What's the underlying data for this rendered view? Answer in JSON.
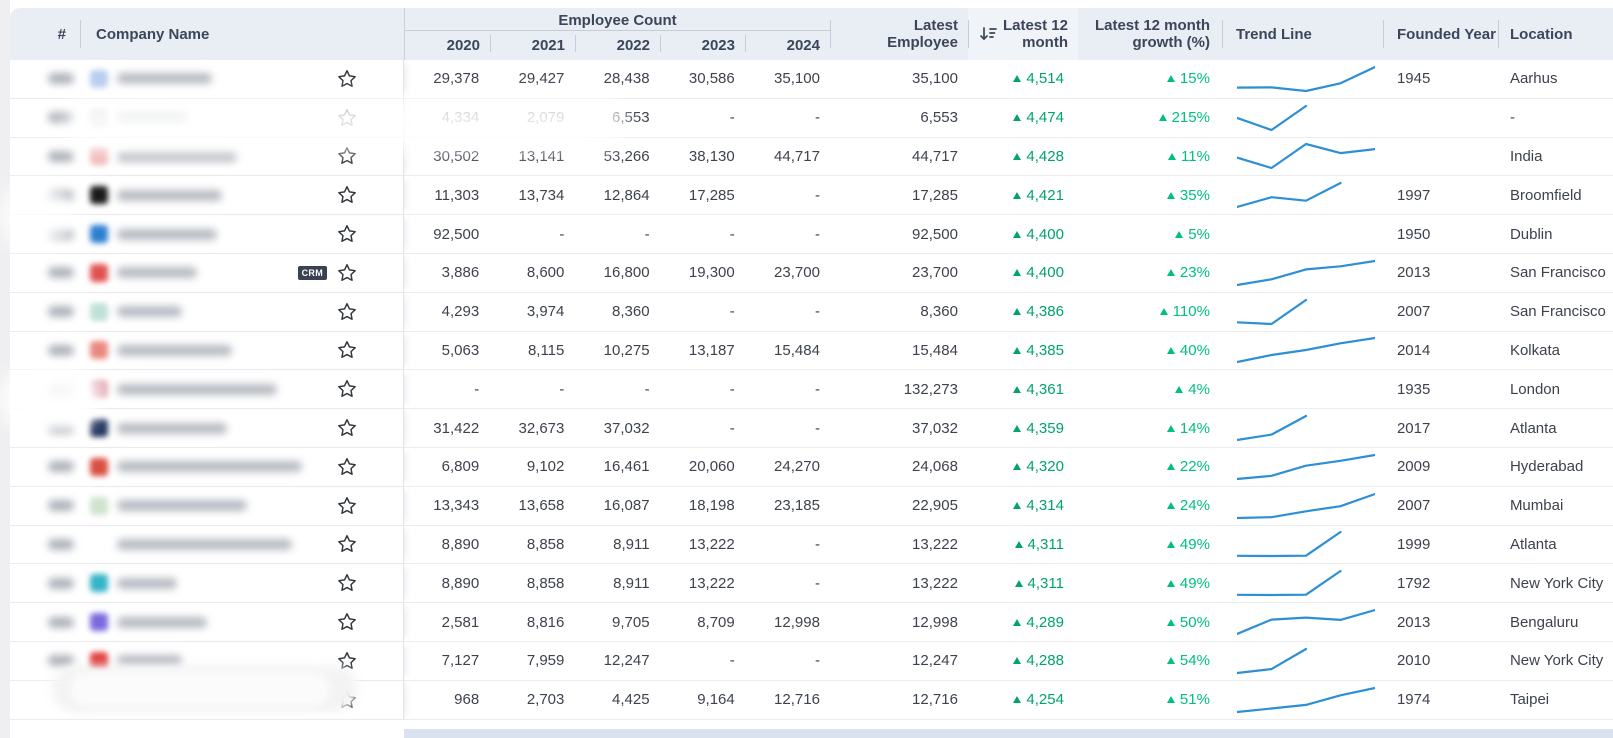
{
  "colors": {
    "header_bg": "#e9edf4",
    "sorted_header_bg": "#f0f3f8",
    "green_value": "#00a36c",
    "green_growth": "#00c07d",
    "sparkline_blue": "#2d8fd5"
  },
  "header": {
    "col_hash": "#",
    "col_company": "Company Name",
    "group_employee_count": "Employee Count",
    "years": [
      "2020",
      "2021",
      "2022",
      "2023",
      "2024"
    ],
    "col_latest_employee": "Latest Employee",
    "col_latest_12m": "Latest 12 month",
    "col_latest_12m_growth": "Latest 12 month growth (%)",
    "col_trend": "Trend Line",
    "col_founded": "Founded Year",
    "col_location": "Location",
    "sort_state": "descending on Latest 12 month"
  },
  "rows": [
    {
      "logo": "#b8cdf0",
      "name_w": 95,
      "badge": "",
      "counts": [
        "29,378",
        "29,427",
        "28,438",
        "30,586",
        "35,100"
      ],
      "latest": "35,100",
      "latest_12m": "4,514",
      "growth": "15%",
      "founded": "1945",
      "location": "Aarhus"
    },
    {
      "logo": "#c9ccd1",
      "name_w": 70,
      "badge": "",
      "counts": [
        "4,334",
        "2,079",
        "6,553",
        "-",
        "-"
      ],
      "latest": "6,553",
      "latest_12m": "4,474",
      "growth": "215%",
      "founded": "",
      "location": "-"
    },
    {
      "logo": "#f0b5b5",
      "name_w": 120,
      "badge": "",
      "counts": [
        "30,502",
        "13,141",
        "53,266",
        "38,130",
        "44,717"
      ],
      "latest": "44,717",
      "latest_12m": "4,428",
      "growth": "11%",
      "founded": "",
      "location": "India"
    },
    {
      "logo": "#1b1b1b",
      "name_w": 105,
      "badge": "",
      "counts": [
        "11,303",
        "13,734",
        "12,864",
        "17,285",
        "-"
      ],
      "latest": "17,285",
      "latest_12m": "4,421",
      "growth": "35%",
      "founded": "1997",
      "location": "Broomfield"
    },
    {
      "logo": "#2f7fd0",
      "name_w": 100,
      "badge": "",
      "counts": [
        "92,500",
        "-",
        "-",
        "-",
        "-"
      ],
      "latest": "92,500",
      "latest_12m": "4,400",
      "growth": "5%",
      "founded": "1950",
      "location": "Dublin"
    },
    {
      "logo": "#e05252",
      "name_w": 80,
      "badge": "CRM",
      "counts": [
        "3,886",
        "8,600",
        "16,800",
        "19,300",
        "23,700"
      ],
      "latest": "23,700",
      "latest_12m": "4,400",
      "growth": "23%",
      "founded": "2013",
      "location": "San Francisco"
    },
    {
      "logo": "#bfe0d8",
      "name_w": 65,
      "badge": "",
      "counts": [
        "4,293",
        "3,974",
        "8,360",
        "-",
        "-"
      ],
      "latest": "8,360",
      "latest_12m": "4,386",
      "growth": "110%",
      "founded": "2007",
      "location": "San Francisco"
    },
    {
      "logo": "#e8897f",
      "name_w": 115,
      "badge": "",
      "counts": [
        "5,063",
        "8,115",
        "10,275",
        "13,187",
        "15,484"
      ],
      "latest": "15,484",
      "latest_12m": "4,385",
      "growth": "40%",
      "founded": "2014",
      "location": "Kolkata"
    },
    {
      "logo": "#e0a9b4",
      "name_w": 160,
      "badge": "",
      "counts": [
        "-",
        "-",
        "-",
        "-",
        "-"
      ],
      "latest": "132,273",
      "latest_12m": "4,361",
      "growth": "4%",
      "founded": "1935",
      "location": "London"
    },
    {
      "logo": "#23355f",
      "name_w": 110,
      "badge": "",
      "counts": [
        "31,422",
        "32,673",
        "37,032",
        "-",
        "-"
      ],
      "latest": "37,032",
      "latest_12m": "4,359",
      "growth": "14%",
      "founded": "2017",
      "location": "Atlanta"
    },
    {
      "logo": "#d94f43",
      "name_w": 185,
      "badge": "",
      "counts": [
        "6,809",
        "9,102",
        "16,461",
        "20,060",
        "24,270"
      ],
      "latest": "24,068",
      "latest_12m": "4,320",
      "growth": "22%",
      "founded": "2009",
      "location": "Hyderabad"
    },
    {
      "logo": "#cfe3cd",
      "name_w": 130,
      "badge": "",
      "counts": [
        "13,343",
        "13,658",
        "16,087",
        "18,198",
        "23,185"
      ],
      "latest": "22,905",
      "latest_12m": "4,314",
      "growth": "24%",
      "founded": "2007",
      "location": "Mumbai"
    },
    {
      "logo": null,
      "name_w": 175,
      "badge": "",
      "counts": [
        "8,890",
        "8,858",
        "8,911",
        "13,222",
        "-"
      ],
      "latest": "13,222",
      "latest_12m": "4,311",
      "growth": "49%",
      "founded": "1999",
      "location": "Atlanta"
    },
    {
      "logo": "#35b3c7",
      "name_w": 60,
      "badge": "",
      "counts": [
        "8,890",
        "8,858",
        "8,911",
        "13,222",
        "-"
      ],
      "latest": "13,222",
      "latest_12m": "4,311",
      "growth": "49%",
      "founded": "1792",
      "location": "New York City"
    },
    {
      "logo": "#7a6bde",
      "name_w": 90,
      "badge": "",
      "counts": [
        "2,581",
        "8,816",
        "9,705",
        "8,709",
        "12,998"
      ],
      "latest": "12,998",
      "latest_12m": "4,289",
      "growth": "50%",
      "founded": "2013",
      "location": "Bengaluru"
    },
    {
      "logo": "#e0413e",
      "name_w": 65,
      "badge": "",
      "counts": [
        "7,127",
        "7,959",
        "12,247",
        "-",
        "-"
      ],
      "latest": "12,247",
      "latest_12m": "4,288",
      "growth": "54%",
      "founded": "2010",
      "location": "New York City"
    },
    {
      "logo": null,
      "name_w": 0,
      "badge": "",
      "counts": [
        "968",
        "2,703",
        "4,425",
        "9,164",
        "12,716"
      ],
      "latest": "12,716",
      "latest_12m": "4,254",
      "growth": "51%",
      "founded": "1974",
      "location": "Taipei"
    }
  ]
}
